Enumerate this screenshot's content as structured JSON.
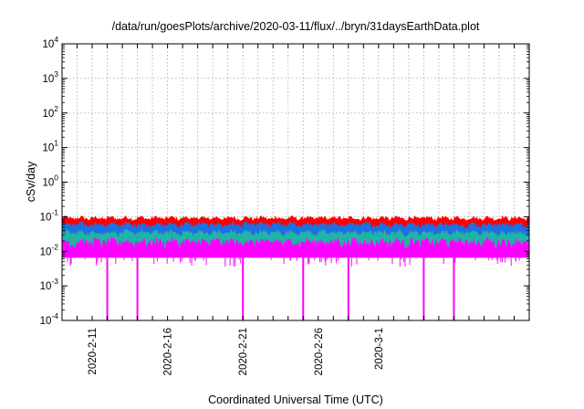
{
  "chart_data": {
    "type": "area",
    "title": "/data/run/goesPlots/archive/2020-03-11/flux/../bryn/31daysEarthData.plot",
    "xlabel": "Coordinated Universal Time (UTC)",
    "ylabel": "cSv/day",
    "y_scale": "log",
    "ylim": [
      0.0001,
      10000
    ],
    "xlim": [
      "2020-02-09",
      "2020-03-11"
    ],
    "y_ticks": [
      {
        "base": "10",
        "exp": "-4"
      },
      {
        "base": "10",
        "exp": "-3"
      },
      {
        "base": "10",
        "exp": "-2"
      },
      {
        "base": "10",
        "exp": "-1"
      },
      {
        "base": "10",
        "exp": "0"
      },
      {
        "base": "10",
        "exp": "1"
      },
      {
        "base": "10",
        "exp": "2"
      },
      {
        "base": "10",
        "exp": "3"
      },
      {
        "base": "10",
        "exp": "4"
      }
    ],
    "x_tick_labels": [
      {
        "date": "2020-02-11",
        "label": "2020-2-11"
      },
      {
        "date": "2020-02-16",
        "label": "2020-2-16"
      },
      {
        "date": "2020-02-21",
        "label": "2020-2-21"
      },
      {
        "date": "2020-02-26",
        "label": "2020-2-26"
      },
      {
        "date": "2020-03-01",
        "label": "2020-3-1"
      }
    ],
    "grid": true,
    "series": [
      {
        "color": "#ff0000",
        "typical_value": 0.085,
        "spread": 0.025
      },
      {
        "color": "#1e6fe0",
        "typical_value": 0.055,
        "spread": 0.02
      },
      {
        "color": "#21b2a8",
        "typical_value": 0.032,
        "spread": 0.012
      },
      {
        "color": "#ff00ff",
        "typical_value": 0.018,
        "floor": 0.0065,
        "dropouts": [
          "2020-02-12",
          "2020-02-14",
          "2020-02-21",
          "2020-02-25",
          "2020-02-28",
          "2020-03-04",
          "2020-03-06"
        ]
      }
    ]
  }
}
